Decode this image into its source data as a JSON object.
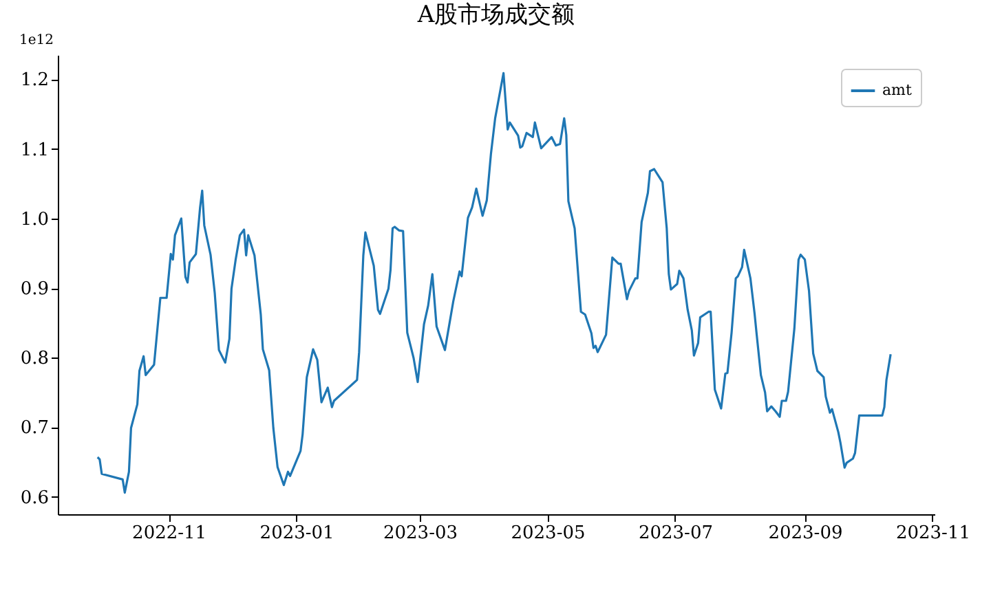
{
  "chart_data": {
    "type": "line",
    "title": "A股市场成交额",
    "annotations": [
      "1e12"
    ],
    "xlim": [
      "2022-09-09",
      "2023-11-02"
    ],
    "xticks": [
      "2022-11",
      "2023-01",
      "2023-03",
      "2023-05",
      "2023-07",
      "2023-09",
      "2023-11"
    ],
    "ylim": [
      0.575,
      1.235
    ],
    "yticks": [
      0.6,
      0.7,
      0.8,
      0.9,
      {
        "value": 1,
        "label": "1.0"
      },
      1.1,
      1.2
    ],
    "grid": false,
    "legend": "top right",
    "marker": "none",
    "line_style": "solid",
    "x": [
      "2022-09-28",
      "2022-09-29",
      "2022-09-30",
      "2022-10-10",
      "2022-10-11",
      "2022-10-13",
      "2022-10-14",
      "2022-10-17",
      "2022-10-18",
      "2022-10-20",
      "2022-10-21",
      "2022-10-25",
      "2022-10-28",
      "2022-10-31",
      "2022-11-02",
      "2022-11-03",
      "2022-11-04",
      "2022-11-07",
      "2022-11-09",
      "2022-11-10",
      "2022-11-11",
      "2022-11-14",
      "2022-11-16",
      "2022-11-17",
      "2022-11-18",
      "2022-11-21",
      "2022-11-23",
      "2022-11-25",
      "2022-11-28",
      "2022-11-30",
      "2022-12-01",
      "2022-12-03",
      "2022-12-05",
      "2022-12-07",
      "2022-12-08",
      "2022-12-09",
      "2022-12-12",
      "2022-12-15",
      "2022-12-16",
      "2022-12-19",
      "2022-12-21",
      "2022-12-23",
      "2022-12-26",
      "2022-12-28",
      "2022-12-29",
      "2023-01-03",
      "2023-01-04",
      "2023-01-06",
      "2023-01-09",
      "2023-01-11",
      "2023-01-13",
      "2023-01-16",
      "2023-01-18",
      "2023-01-19",
      "2023-01-30",
      "2023-01-31",
      "2023-02-02",
      "2023-02-03",
      "2023-02-07",
      "2023-02-09",
      "2023-02-10",
      "2023-02-14",
      "2023-02-15",
      "2023-02-16",
      "2023-02-17",
      "2023-02-19",
      "2023-02-21",
      "2023-02-23",
      "2023-02-26",
      "2023-02-28",
      "2023-03-03",
      "2023-03-05",
      "2023-03-07",
      "2023-03-09",
      "2023-03-13",
      "2023-03-17",
      "2023-03-20",
      "2023-03-21",
      "2023-03-24",
      "2023-03-26",
      "2023-03-28",
      "2023-03-31",
      "2023-04-02",
      "2023-04-04",
      "2023-04-06",
      "2023-04-10",
      "2023-04-12",
      "2023-04-13",
      "2023-04-17",
      "2023-04-18",
      "2023-04-19",
      "2023-04-21",
      "2023-04-24",
      "2023-04-25",
      "2023-04-28",
      "2023-05-03",
      "2023-05-05",
      "2023-05-07",
      "2023-05-09",
      "2023-05-10",
      "2023-05-11",
      "2023-05-14",
      "2023-05-17",
      "2023-05-19",
      "2023-05-22",
      "2023-05-23",
      "2023-05-24",
      "2023-05-25",
      "2023-05-29",
      "2023-06-01",
      "2023-06-04",
      "2023-06-05",
      "2023-06-08",
      "2023-06-09",
      "2023-06-12",
      "2023-06-13",
      "2023-06-15",
      "2023-06-18",
      "2023-06-19",
      "2023-06-21",
      "2023-06-25",
      "2023-06-27",
      "2023-06-28",
      "2023-06-29",
      "2023-07-02",
      "2023-07-03",
      "2023-07-05",
      "2023-07-07",
      "2023-07-09",
      "2023-07-10",
      "2023-07-12",
      "2023-07-13",
      "2023-07-17",
      "2023-07-18",
      "2023-07-20",
      "2023-07-23",
      "2023-07-25",
      "2023-07-26",
      "2023-07-28",
      "2023-07-30",
      "2023-07-31",
      "2023-08-02",
      "2023-08-03",
      "2023-08-06",
      "2023-08-08",
      "2023-08-09",
      "2023-08-11",
      "2023-08-13",
      "2023-08-14",
      "2023-08-16",
      "2023-08-18",
      "2023-08-20",
      "2023-08-21",
      "2023-08-23",
      "2023-08-24",
      "2023-08-27",
      "2023-08-29",
      "2023-08-30",
      "2023-09-01",
      "2023-09-03",
      "2023-09-05",
      "2023-09-07",
      "2023-09-10",
      "2023-09-11",
      "2023-09-13",
      "2023-09-14",
      "2023-09-17",
      "2023-09-18",
      "2023-09-20",
      "2023-09-21",
      "2023-09-24",
      "2023-09-25",
      "2023-09-27",
      "2023-10-08",
      "2023-10-09",
      "2023-10-10",
      "2023-10-12"
    ],
    "series": [
      {
        "name": "amt",
        "color": "#1f77b4",
        "values": [
          0.657,
          0.654,
          0.633,
          0.625,
          0.606,
          0.636,
          0.699,
          0.733,
          0.781,
          0.802,
          0.775,
          0.79,
          0.886,
          0.886,
          0.949,
          0.941,
          0.976,
          1.0,
          0.916,
          0.908,
          0.937,
          0.949,
          1.016,
          1.04,
          0.99,
          0.948,
          0.893,
          0.811,
          0.793,
          0.827,
          0.899,
          0.941,
          0.976,
          0.984,
          0.947,
          0.976,
          0.947,
          0.862,
          0.812,
          0.782,
          0.699,
          0.643,
          0.617,
          0.636,
          0.63,
          0.666,
          0.69,
          0.772,
          0.812,
          0.797,
          0.736,
          0.757,
          0.729,
          0.738,
          0.768,
          0.808,
          0.947,
          0.98,
          0.932,
          0.869,
          0.863,
          0.899,
          0.926,
          0.986,
          0.988,
          0.983,
          0.982,
          0.836,
          0.8,
          0.765,
          0.848,
          0.875,
          0.92,
          0.845,
          0.811,
          0.881,
          0.924,
          0.917,
          1.001,
          1.016,
          1.043,
          1.004,
          1.026,
          1.093,
          1.144,
          1.209,
          1.128,
          1.138,
          1.119,
          1.102,
          1.104,
          1.123,
          1.117,
          1.138,
          1.101,
          1.117,
          1.105,
          1.107,
          1.144,
          1.12,
          1.025,
          0.986,
          0.866,
          0.862,
          0.835,
          0.814,
          0.817,
          0.808,
          0.833,
          0.944,
          0.935,
          0.935,
          0.884,
          0.896,
          0.914,
          0.914,
          0.995,
          1.037,
          1.068,
          1.071,
          1.052,
          0.986,
          0.92,
          0.898,
          0.906,
          0.925,
          0.914,
          0.869,
          0.839,
          0.803,
          0.821,
          0.858,
          0.866,
          0.866,
          0.754,
          0.727,
          0.777,
          0.778,
          0.836,
          0.914,
          0.917,
          0.93,
          0.955,
          0.914,
          0.863,
          0.833,
          0.775,
          0.75,
          0.723,
          0.73,
          0.723,
          0.715,
          0.738,
          0.738,
          0.751,
          0.842,
          0.941,
          0.948,
          0.941,
          0.896,
          0.806,
          0.781,
          0.772,
          0.744,
          0.721,
          0.726,
          0.693,
          0.678,
          0.642,
          0.649,
          0.655,
          0.663,
          0.717,
          0.717,
          0.729,
          0.768,
          0.805
        ]
      }
    ]
  }
}
